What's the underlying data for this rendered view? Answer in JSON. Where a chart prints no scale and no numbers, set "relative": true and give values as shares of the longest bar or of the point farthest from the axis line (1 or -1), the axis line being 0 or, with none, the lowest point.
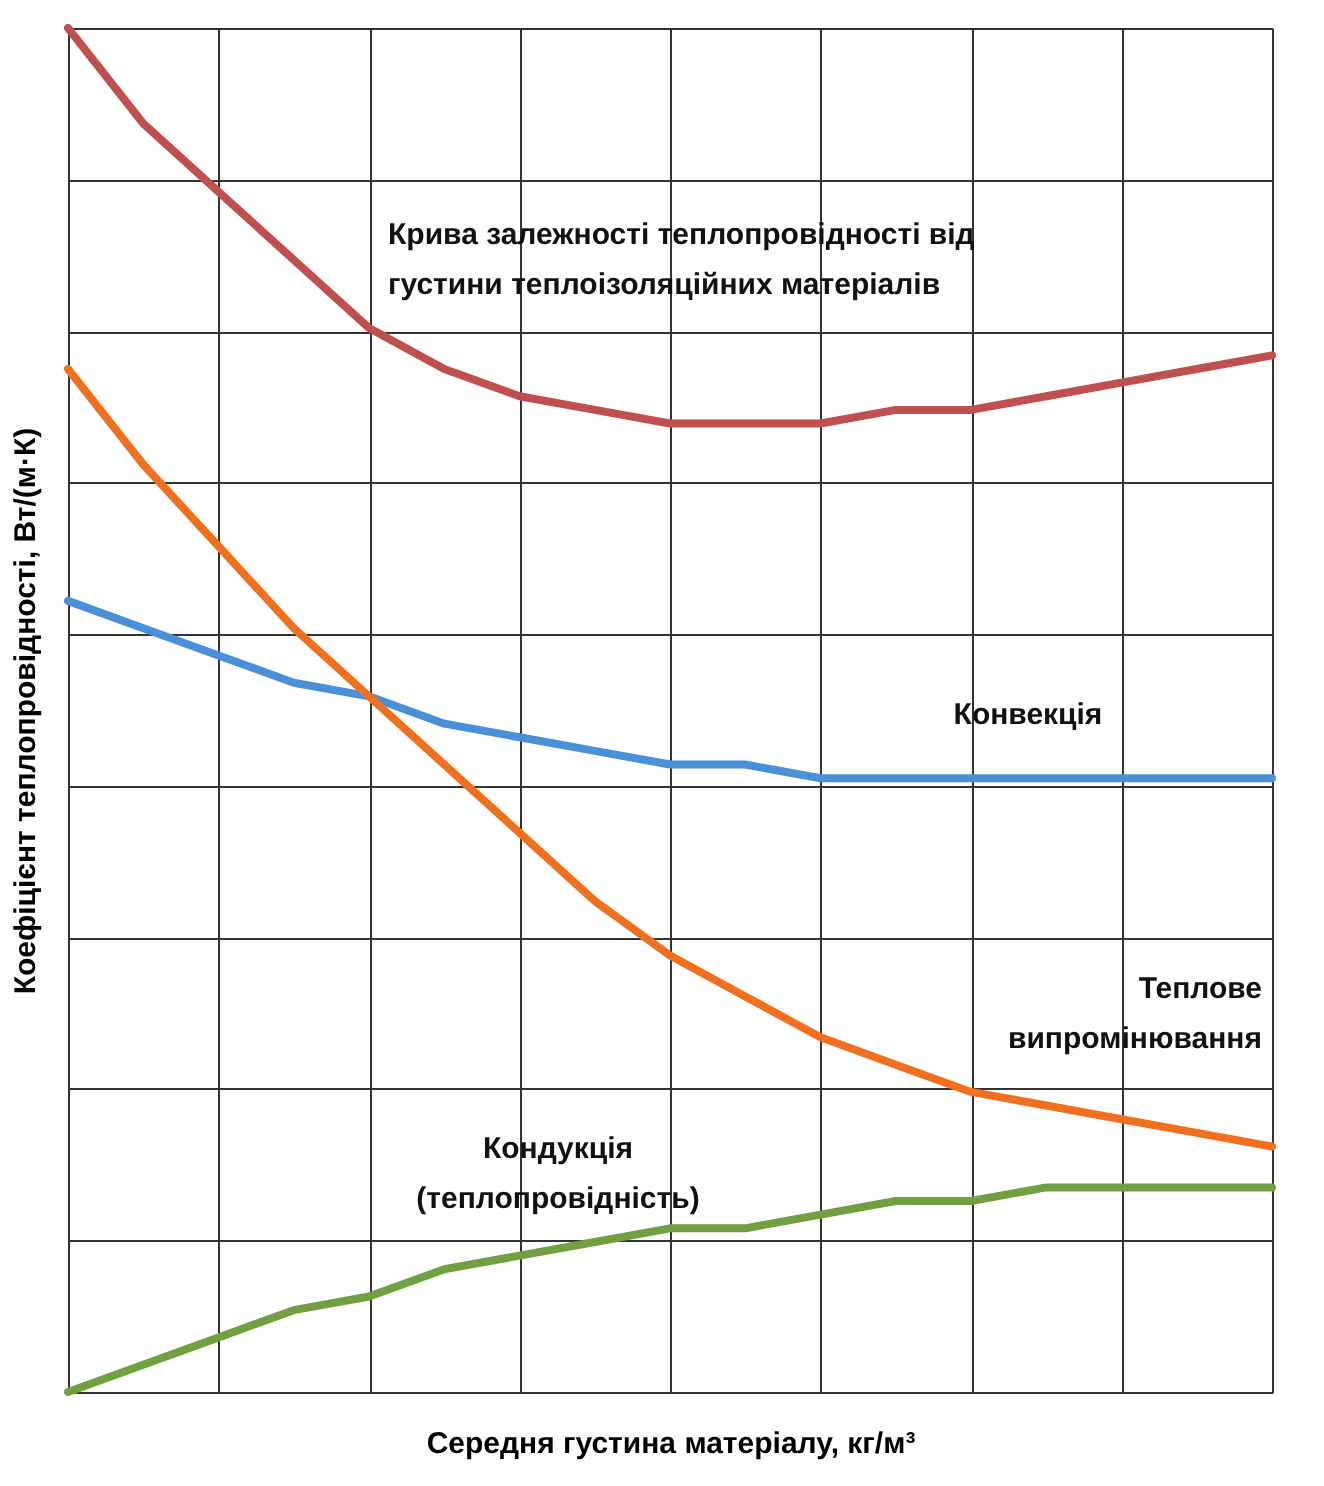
{
  "chart_data": {
    "type": "line",
    "relative": true,
    "grid": true,
    "xlabel": "Середня густина матеріалу, кг/м³",
    "ylabel": "Коефіцієнт теплопровідності, Вт/(м·К)",
    "categories": [
      null,
      null,
      null,
      null,
      null,
      null,
      null,
      null,
      null,
      null,
      null,
      null,
      null,
      null,
      null,
      null,
      null
    ],
    "series": [
      {
        "name": "Крива залежності теплопровідності від густини теплоізоляційних матеріалів",
        "color": "#c0504d",
        "values": [
          1,
          0.93,
          0.88,
          0.83,
          0.78,
          0.75,
          0.73,
          0.72,
          0.71,
          0.71,
          0.71,
          0.72,
          0.72,
          0.73,
          0.74,
          0.75,
          0.76
        ]
      },
      {
        "name": "Конвекція",
        "color": "#4a90d9",
        "values": [
          0.58,
          0.56,
          0.54,
          0.52,
          0.51,
          0.49,
          0.48,
          0.47,
          0.46,
          0.46,
          0.45,
          0.45,
          0.45,
          0.45,
          0.45,
          0.45,
          0.45
        ]
      },
      {
        "name": "Теплове випромінювання",
        "color": "#f07020",
        "values": [
          0.75,
          0.68,
          0.62,
          0.56,
          0.51,
          0.46,
          0.41,
          0.36,
          0.32,
          0.29,
          0.26,
          0.24,
          0.22,
          0.21,
          0.2,
          0.19,
          0.18
        ]
      },
      {
        "name": "Кондукція (теплопровідність)",
        "color": "#70a040",
        "values": [
          0,
          0.02,
          0.04,
          0.06,
          0.07,
          0.09,
          0.1,
          0.11,
          0.12,
          0.12,
          0.13,
          0.14,
          0.14,
          0.15,
          0.15,
          0.15,
          0.15
        ]
      }
    ]
  }
}
